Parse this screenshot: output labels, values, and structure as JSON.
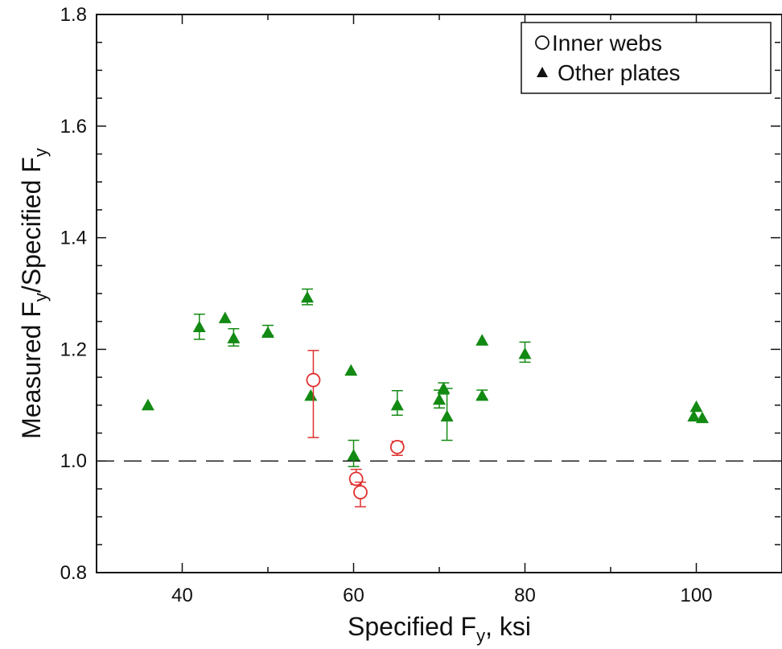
{
  "chart_data": {
    "type": "scatter",
    "xlabel": "Specified F",
    "xlabel_sub": "y",
    "xlabel_suffix": ", ksi",
    "ylabel_parts": [
      "Measured F",
      "y",
      "/Specified F",
      "y"
    ],
    "xlim": [
      30,
      110
    ],
    "ylim": [
      0.8,
      1.8
    ],
    "x_ticks": [
      40,
      60,
      80,
      100
    ],
    "y_ticks": [
      0.8,
      1.0,
      1.2,
      1.4,
      1.6,
      1.8
    ],
    "x_tick_labels": [
      "40",
      "60",
      "80",
      "100"
    ],
    "y_tick_labels": [
      "0.8",
      "1.0",
      "1.2",
      "1.4",
      "1.6",
      "1.8"
    ],
    "grid": false,
    "reference_line": {
      "y": 1.0,
      "style": "dashed"
    },
    "legend_position": "top-right",
    "series": [
      {
        "name": "Inner webs",
        "marker": "open-circle",
        "color": "#e03030",
        "points": [
          {
            "x": 55.3,
            "y": 1.145,
            "err_low": 1.042,
            "err_high": 1.198
          },
          {
            "x": 60.3,
            "y": 0.968,
            "err_low": 0.958,
            "err_high": 0.985
          },
          {
            "x": 60.8,
            "y": 0.944,
            "err_low": 0.918,
            "err_high": 0.962
          },
          {
            "x": 65.1,
            "y": 1.025,
            "err_low": 1.01,
            "err_high": 1.035
          }
        ]
      },
      {
        "name": "Other plates",
        "marker": "filled-triangle",
        "color": "#138a13",
        "points": [
          {
            "x": 36.0,
            "y": 1.1
          },
          {
            "x": 42.0,
            "y": 1.24,
            "err_low": 1.218,
            "err_high": 1.263
          },
          {
            "x": 45.0,
            "y": 1.256
          },
          {
            "x": 46.0,
            "y": 1.22,
            "err_low": 1.206,
            "err_high": 1.237
          },
          {
            "x": 50.0,
            "y": 1.23,
            "err_low": 1.225,
            "err_high": 1.243
          },
          {
            "x": 54.6,
            "y": 1.293,
            "err_low": 1.28,
            "err_high": 1.308
          },
          {
            "x": 55.0,
            "y": 1.117
          },
          {
            "x": 59.7,
            "y": 1.162
          },
          {
            "x": 60.0,
            "y": 1.01,
            "err_low": 0.99,
            "err_high": 1.037
          },
          {
            "x": 65.1,
            "y": 1.1,
            "err_low": 1.082,
            "err_high": 1.126
          },
          {
            "x": 70.0,
            "y": 1.11,
            "err_low": 1.095,
            "err_high": 1.127
          },
          {
            "x": 70.5,
            "y": 1.13,
            "err_low": 1.12,
            "err_high": 1.14
          },
          {
            "x": 70.9,
            "y": 1.08,
            "err_low": 1.037,
            "err_high": 1.13
          },
          {
            "x": 75.0,
            "y": 1.216
          },
          {
            "x": 75.0,
            "y": 1.117,
            "err_low": 1.111,
            "err_high": 1.127
          },
          {
            "x": 80.0,
            "y": 1.192,
            "err_low": 1.177,
            "err_high": 1.213
          },
          {
            "x": 99.7,
            "y": 1.08
          },
          {
            "x": 100.0,
            "y": 1.097
          },
          {
            "x": 100.7,
            "y": 1.077
          }
        ]
      }
    ]
  }
}
